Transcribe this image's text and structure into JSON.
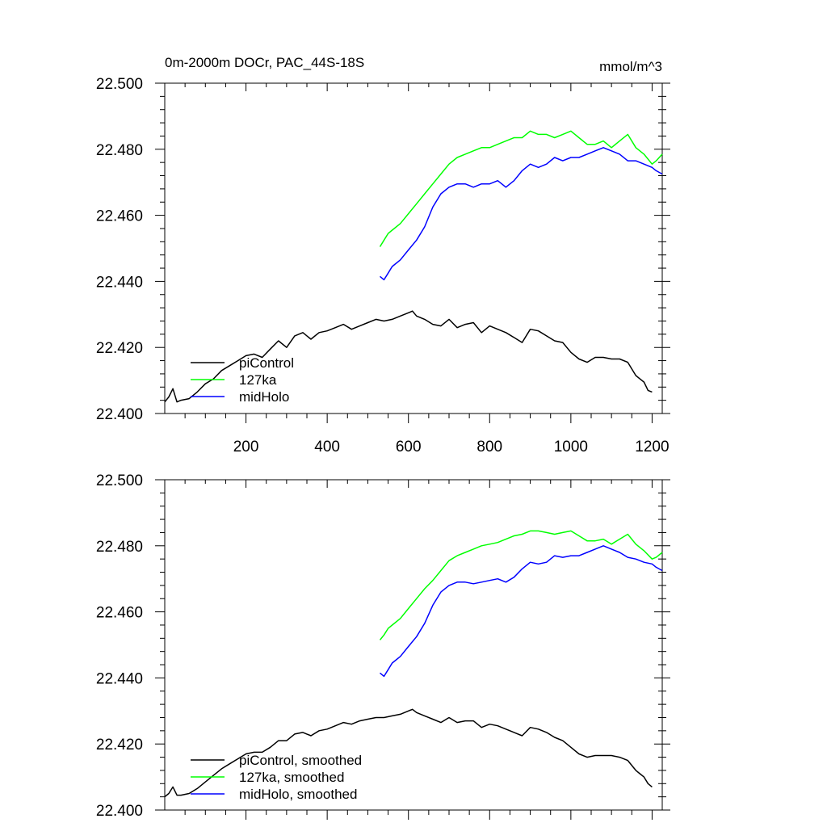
{
  "chart_data": [
    {
      "type": "line",
      "title": "0m-2000m DOCr, PAC_44S-18S",
      "units": "mmol/m^3",
      "xlim": [
        0,
        1225
      ],
      "ylim": [
        22.4,
        22.5
      ],
      "x_ticks": [
        200,
        400,
        600,
        800,
        1000,
        1200
      ],
      "x_tick_labels": [
        "200",
        "400",
        "600",
        "800",
        "1000",
        "1200"
      ],
      "y_ticks": [
        22.4,
        22.42,
        22.44,
        22.46,
        22.48,
        22.5
      ],
      "y_tick_labels": [
        "22.400",
        "22.420",
        "22.440",
        "22.460",
        "22.480",
        "22.500"
      ],
      "legend_position": "bottom-left",
      "series": [
        {
          "name": "piControl",
          "color": "#000000",
          "x": [
            0,
            10,
            20,
            30,
            40,
            60,
            80,
            100,
            120,
            140,
            160,
            180,
            200,
            220,
            240,
            260,
            280,
            300,
            320,
            340,
            360,
            380,
            400,
            420,
            440,
            460,
            480,
            500,
            520,
            540,
            560,
            580,
            600,
            610,
            620,
            640,
            660,
            680,
            700,
            720,
            740,
            760,
            780,
            800,
            820,
            840,
            860,
            880,
            900,
            920,
            940,
            960,
            980,
            1000,
            1020,
            1040,
            1060,
            1080,
            1100,
            1120,
            1140,
            1160,
            1170,
            1180,
            1190,
            1200
          ],
          "values": [
            22.4035,
            22.405,
            22.4075,
            22.4035,
            22.404,
            22.4045,
            22.4065,
            22.409,
            22.4105,
            22.413,
            22.4145,
            22.416,
            22.4175,
            22.418,
            22.417,
            22.4195,
            22.422,
            22.42,
            22.4235,
            22.4245,
            22.4225,
            22.4245,
            22.425,
            22.426,
            22.427,
            22.4255,
            22.4265,
            22.4275,
            22.4285,
            22.428,
            22.4285,
            22.4295,
            22.4305,
            22.431,
            22.4295,
            22.4285,
            22.427,
            22.4265,
            22.4285,
            22.426,
            22.427,
            22.4275,
            22.4245,
            22.4265,
            22.4255,
            22.4245,
            22.423,
            22.4215,
            22.4255,
            22.425,
            22.4235,
            22.422,
            22.4215,
            22.4185,
            22.4165,
            22.4155,
            22.417,
            22.417,
            22.4165,
            22.4165,
            22.4155,
            22.4115,
            22.4105,
            22.4095,
            22.407,
            22.4065
          ]
        },
        {
          "name": "127ka",
          "color": "#00ff00",
          "x": [
            530,
            540,
            550,
            560,
            580,
            600,
            620,
            640,
            660,
            680,
            700,
            720,
            740,
            760,
            780,
            800,
            820,
            840,
            860,
            880,
            900,
            920,
            940,
            960,
            980,
            1000,
            1020,
            1040,
            1060,
            1080,
            1100,
            1120,
            1140,
            1160,
            1180,
            1200,
            1210,
            1225
          ],
          "values": [
            22.4505,
            22.4525,
            22.4545,
            22.4555,
            22.4575,
            22.4605,
            22.4635,
            22.4665,
            22.4695,
            22.4725,
            22.4755,
            22.4775,
            22.4785,
            22.4795,
            22.4805,
            22.4805,
            22.4815,
            22.4825,
            22.4835,
            22.4835,
            22.4855,
            22.4845,
            22.4845,
            22.4835,
            22.4845,
            22.4855,
            22.4835,
            22.4815,
            22.4815,
            22.4825,
            22.4805,
            22.4825,
            22.4845,
            22.4805,
            22.4785,
            22.4755,
            22.4765,
            22.4785
          ]
        },
        {
          "name": "midHolo",
          "color": "#0000ff",
          "x": [
            530,
            540,
            550,
            560,
            580,
            600,
            620,
            640,
            660,
            680,
            700,
            720,
            740,
            760,
            780,
            800,
            820,
            840,
            860,
            880,
            900,
            920,
            940,
            960,
            980,
            1000,
            1020,
            1040,
            1060,
            1080,
            1100,
            1120,
            1140,
            1160,
            1180,
            1200,
            1210,
            1225
          ],
          "values": [
            22.4415,
            22.4405,
            22.4425,
            22.4445,
            22.4465,
            22.4495,
            22.4525,
            22.4565,
            22.4625,
            22.4665,
            22.4685,
            22.4695,
            22.4695,
            22.4685,
            22.4695,
            22.4695,
            22.4705,
            22.4685,
            22.4705,
            22.4735,
            22.4755,
            22.4745,
            22.4755,
            22.4775,
            22.4765,
            22.4775,
            22.4775,
            22.4785,
            22.4795,
            22.4805,
            22.4795,
            22.4785,
            22.4765,
            22.4765,
            22.4755,
            22.4745,
            22.4735,
            22.4725
          ]
        }
      ]
    },
    {
      "type": "line",
      "title": "",
      "units": "",
      "xlim": [
        0,
        1225
      ],
      "ylim": [
        22.4,
        22.5
      ],
      "x_ticks": [
        200,
        400,
        600,
        800,
        1000,
        1200
      ],
      "x_tick_labels": [],
      "y_ticks": [
        22.4,
        22.42,
        22.44,
        22.46,
        22.48,
        22.5
      ],
      "y_tick_labels": [
        "22.400",
        "22.420",
        "22.440",
        "22.460",
        "22.480",
        "22.500"
      ],
      "legend_position": "bottom-left",
      "series": [
        {
          "name": "piControl, smoothed",
          "color": "#000000",
          "x": [
            0,
            10,
            20,
            30,
            40,
            60,
            80,
            100,
            120,
            140,
            160,
            180,
            200,
            220,
            240,
            260,
            280,
            300,
            320,
            340,
            360,
            380,
            400,
            420,
            440,
            460,
            480,
            500,
            520,
            540,
            560,
            580,
            600,
            610,
            620,
            640,
            660,
            680,
            700,
            720,
            740,
            760,
            780,
            800,
            820,
            840,
            860,
            880,
            900,
            920,
            940,
            960,
            980,
            1000,
            1020,
            1040,
            1060,
            1080,
            1100,
            1120,
            1140,
            1160,
            1170,
            1180,
            1190,
            1200
          ],
          "values": [
            22.404,
            22.405,
            22.407,
            22.4045,
            22.4045,
            22.405,
            22.4065,
            22.4085,
            22.4105,
            22.4125,
            22.414,
            22.4155,
            22.417,
            22.4175,
            22.4175,
            22.419,
            22.421,
            22.421,
            22.423,
            22.4235,
            22.4225,
            22.424,
            22.4245,
            22.4255,
            22.4265,
            22.426,
            22.427,
            22.4275,
            22.428,
            22.428,
            22.4285,
            22.429,
            22.43,
            22.4305,
            22.4295,
            22.4285,
            22.4275,
            22.4265,
            22.428,
            22.4265,
            22.427,
            22.427,
            22.425,
            22.426,
            22.4255,
            22.4245,
            22.4235,
            22.4225,
            22.425,
            22.4245,
            22.4235,
            22.422,
            22.421,
            22.419,
            22.417,
            22.416,
            22.4165,
            22.4165,
            22.4165,
            22.416,
            22.415,
            22.412,
            22.411,
            22.41,
            22.408,
            22.407
          ]
        },
        {
          "name": "127ka, smoothed",
          "color": "#00ff00",
          "x": [
            530,
            540,
            550,
            560,
            580,
            600,
            620,
            640,
            660,
            680,
            700,
            720,
            740,
            760,
            780,
            800,
            820,
            840,
            860,
            880,
            900,
            920,
            940,
            960,
            980,
            1000,
            1020,
            1040,
            1060,
            1080,
            1100,
            1120,
            1140,
            1160,
            1180,
            1200,
            1210,
            1225
          ],
          "values": [
            22.4515,
            22.453,
            22.455,
            22.456,
            22.458,
            22.461,
            22.464,
            22.467,
            22.4695,
            22.4725,
            22.4755,
            22.477,
            22.478,
            22.479,
            22.48,
            22.4805,
            22.481,
            22.482,
            22.483,
            22.4835,
            22.4845,
            22.4845,
            22.484,
            22.4835,
            22.484,
            22.4845,
            22.483,
            22.4815,
            22.4815,
            22.482,
            22.4805,
            22.482,
            22.4835,
            22.4805,
            22.4785,
            22.476,
            22.4765,
            22.478
          ]
        },
        {
          "name": "midHolo, smoothed",
          "color": "#0000ff",
          "x": [
            530,
            540,
            550,
            560,
            580,
            600,
            620,
            640,
            660,
            680,
            700,
            720,
            740,
            760,
            780,
            800,
            820,
            840,
            860,
            880,
            900,
            920,
            940,
            960,
            980,
            1000,
            1020,
            1040,
            1060,
            1080,
            1100,
            1120,
            1140,
            1160,
            1180,
            1200,
            1210,
            1225
          ],
          "values": [
            22.4415,
            22.4405,
            22.4425,
            22.4445,
            22.4465,
            22.4495,
            22.4525,
            22.4565,
            22.462,
            22.466,
            22.468,
            22.469,
            22.469,
            22.4685,
            22.469,
            22.4695,
            22.47,
            22.469,
            22.4705,
            22.473,
            22.475,
            22.4745,
            22.475,
            22.477,
            22.4765,
            22.477,
            22.477,
            22.478,
            22.479,
            22.48,
            22.479,
            22.478,
            22.4765,
            22.476,
            22.475,
            22.4745,
            22.4735,
            22.4725
          ]
        }
      ]
    }
  ]
}
